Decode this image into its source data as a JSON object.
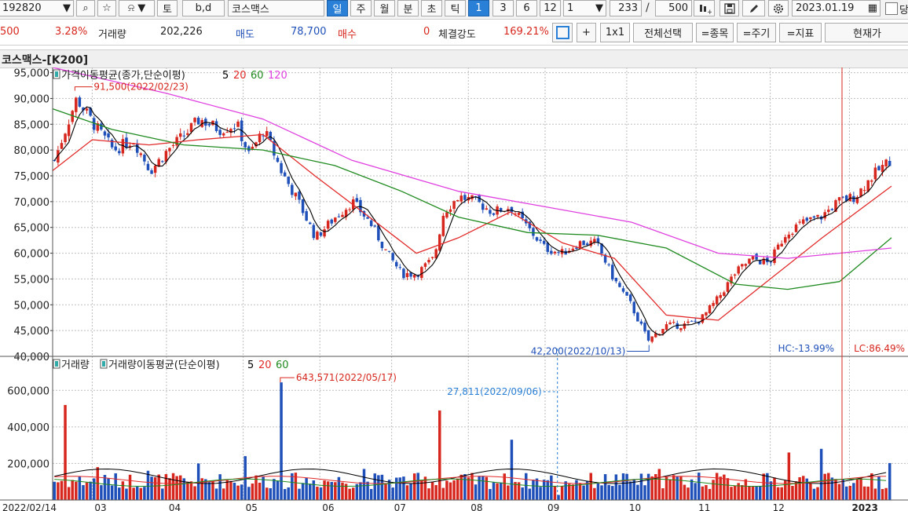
{
  "toolbar": {
    "code": "192820",
    "dropdown_arrow": "▼",
    "search_glyph": "⌕",
    "star_glyph": "☆",
    "bell_glyph": "⍾",
    "day_toggle": "토",
    "bd_toggle": "b,d",
    "stock_name": "코스맥스",
    "periods": [
      "일",
      "주",
      "월",
      "분",
      "초",
      "틱"
    ],
    "period_active": "일",
    "counts": [
      "1",
      "3",
      "6",
      "12"
    ],
    "count_active": "1",
    "count_select": "1",
    "bars_visible": "233",
    "slash": "/",
    "bars_total": "500",
    "date": "2023.01.19",
    "calendar_glyph": "▦",
    "checkbox_label": "당"
  },
  "infobar": {
    "price_partial": "500",
    "change_pct": "3.28%",
    "volume_label": "거래량",
    "volume_value": "202,226",
    "ask_label": "매도",
    "ask_value": "78,700",
    "bid_label": "매수",
    "bid_value": "0",
    "strength_label": "체결강도",
    "strength_value": "169.21%",
    "buttons": [
      "+",
      "1x1",
      "전체선택",
      "=종목",
      "=주기",
      "=지표",
      "현재가"
    ]
  },
  "chart_title": "코스맥스-[K200]",
  "colors": {
    "up": "#d7261e",
    "down": "#1f4fb8",
    "ma5": "#000000",
    "ma20": "#e22a2a",
    "ma60": "#1f8a1f",
    "ma120": "#e040e0",
    "accent_blue": "#2a7fd6"
  },
  "chart_data": [
    {
      "type": "candlestick",
      "legend_title": "가격이동평균(종가,단순이평)",
      "ma_periods": [
        "5",
        "20",
        "60",
        "120"
      ],
      "y_ticks": [
        "95,000",
        "90,000",
        "85,000",
        "80,000",
        "75,000",
        "70,000",
        "65,000",
        "60,000",
        "55,000",
        "50,000",
        "45,000",
        "40,000"
      ],
      "ylim": [
        40000,
        96000
      ],
      "x_labels": [
        "2022/02/14",
        "03",
        "04",
        "05",
        "06",
        "07",
        "08",
        "09",
        "10",
        "11",
        "12",
        "2023"
      ],
      "annotations": {
        "high": "91,500(2022/02/23)",
        "low": "42,200(2022/10/13)",
        "hc": "HC:-13.99%",
        "lc": "LC:86.49%"
      },
      "close_points": [
        [
          "2022-02-14",
          78000
        ],
        [
          "2022-02-23",
          90000
        ],
        [
          "2022-03-02",
          85000
        ],
        [
          "2022-03-10",
          80000
        ],
        [
          "2022-03-18",
          82000
        ],
        [
          "2022-03-25",
          76000
        ],
        [
          "2022-04-01",
          80000
        ],
        [
          "2022-04-08",
          83000
        ],
        [
          "2022-04-14",
          86000
        ],
        [
          "2022-04-22",
          84000
        ],
        [
          "2022-04-29",
          85000
        ],
        [
          "2022-05-04",
          79000
        ],
        [
          "2022-05-10",
          84000
        ],
        [
          "2022-05-17",
          76000
        ],
        [
          "2022-05-24",
          70000
        ],
        [
          "2022-05-31",
          63000
        ],
        [
          "2022-06-08",
          67000
        ],
        [
          "2022-06-15",
          70000
        ],
        [
          "2022-06-22",
          66000
        ],
        [
          "2022-06-29",
          60000
        ],
        [
          "2022-07-05",
          56000
        ],
        [
          "2022-07-11",
          56000
        ],
        [
          "2022-07-18",
          59000
        ],
        [
          "2022-07-22",
          68000
        ],
        [
          "2022-07-28",
          71000
        ],
        [
          "2022-08-04",
          70000
        ],
        [
          "2022-08-11",
          68000
        ],
        [
          "2022-08-18",
          69000
        ],
        [
          "2022-08-25",
          65000
        ],
        [
          "2022-09-01",
          61000
        ],
        [
          "2022-09-08",
          60000
        ],
        [
          "2022-09-15",
          62000
        ],
        [
          "2022-09-22",
          62000
        ],
        [
          "2022-09-29",
          55000
        ],
        [
          "2022-10-06",
          50000
        ],
        [
          "2022-10-13",
          43000
        ],
        [
          "2022-10-20",
          46000
        ],
        [
          "2022-10-27",
          46000
        ],
        [
          "2022-11-03",
          47000
        ],
        [
          "2022-11-10",
          51000
        ],
        [
          "2022-11-17",
          56000
        ],
        [
          "2022-11-24",
          59000
        ],
        [
          "2022-12-01",
          58000
        ],
        [
          "2022-12-08",
          64000
        ],
        [
          "2022-12-15",
          66000
        ],
        [
          "2022-12-22",
          67000
        ],
        [
          "2022-12-29",
          70000
        ],
        [
          "2023-01-05",
          71000
        ],
        [
          "2023-01-12",
          75000
        ],
        [
          "2023-01-19",
          78000
        ]
      ],
      "ma20_points": [
        [
          "2022-02-14",
          76000
        ],
        [
          "2022-03-02",
          82000
        ],
        [
          "2022-03-25",
          81000
        ],
        [
          "2022-04-14",
          82000
        ],
        [
          "2022-05-10",
          83000
        ],
        [
          "2022-05-31",
          75000
        ],
        [
          "2022-06-22",
          67000
        ],
        [
          "2022-07-11",
          60000
        ],
        [
          "2022-07-28",
          63000
        ],
        [
          "2022-08-18",
          68000
        ],
        [
          "2022-09-08",
          62000
        ],
        [
          "2022-09-29",
          59000
        ],
        [
          "2022-10-20",
          48000
        ],
        [
          "2022-11-10",
          47000
        ],
        [
          "2022-12-01",
          55000
        ],
        [
          "2022-12-22",
          63000
        ],
        [
          "2023-01-19",
          73000
        ]
      ],
      "ma60_points": [
        [
          "2022-02-14",
          88000
        ],
        [
          "2022-03-10",
          84000
        ],
        [
          "2022-04-08",
          81000
        ],
        [
          "2022-05-10",
          80000
        ],
        [
          "2022-06-08",
          77000
        ],
        [
          "2022-07-05",
          72000
        ],
        [
          "2022-07-28",
          67000
        ],
        [
          "2022-08-25",
          64000
        ],
        [
          "2022-09-22",
          63500
        ],
        [
          "2022-10-20",
          61000
        ],
        [
          "2022-11-17",
          54000
        ],
        [
          "2022-12-08",
          53000
        ],
        [
          "2022-12-29",
          54500
        ],
        [
          "2023-01-19",
          63000
        ]
      ],
      "ma120_points": [
        [
          "2022-02-14",
          96000
        ],
        [
          "2022-04-01",
          91000
        ],
        [
          "2022-05-10",
          86000
        ],
        [
          "2022-06-15",
          78000
        ],
        [
          "2022-07-28",
          72000
        ],
        [
          "2022-09-01",
          69000
        ],
        [
          "2022-10-06",
          66000
        ],
        [
          "2022-11-10",
          60000
        ],
        [
          "2022-12-08",
          59000
        ],
        [
          "2023-01-19",
          61000
        ]
      ]
    },
    {
      "type": "bar",
      "legend_title_1": "거래량",
      "legend_title_2": "거래량이동평균(단순이평)",
      "ma_periods": [
        "5",
        "20",
        "60"
      ],
      "y_ticks": [
        "600,000",
        "400,000",
        "200,000"
      ],
      "ylim": [
        0,
        700000
      ],
      "annotations": {
        "peak": "643,571(2022/05/17)",
        "crosshair": "27,811(2022/09/06)"
      },
      "spikes": [
        [
          "2022-02-18",
          520000
        ],
        [
          "2022-03-04",
          180000
        ],
        [
          "2022-03-24",
          160000
        ],
        [
          "2022-04-14",
          200000
        ],
        [
          "2022-05-03",
          240000
        ],
        [
          "2022-05-17",
          643571
        ],
        [
          "2022-06-20",
          170000
        ],
        [
          "2022-07-21",
          490000
        ],
        [
          "2022-08-18",
          330000
        ],
        [
          "2022-09-06",
          27811
        ],
        [
          "2022-09-30",
          140000
        ],
        [
          "2022-10-17",
          170000
        ],
        [
          "2022-11-02",
          150000
        ],
        [
          "2022-12-09",
          260000
        ],
        [
          "2022-12-22",
          280000
        ],
        [
          "2023-01-19",
          202226
        ]
      ]
    }
  ]
}
